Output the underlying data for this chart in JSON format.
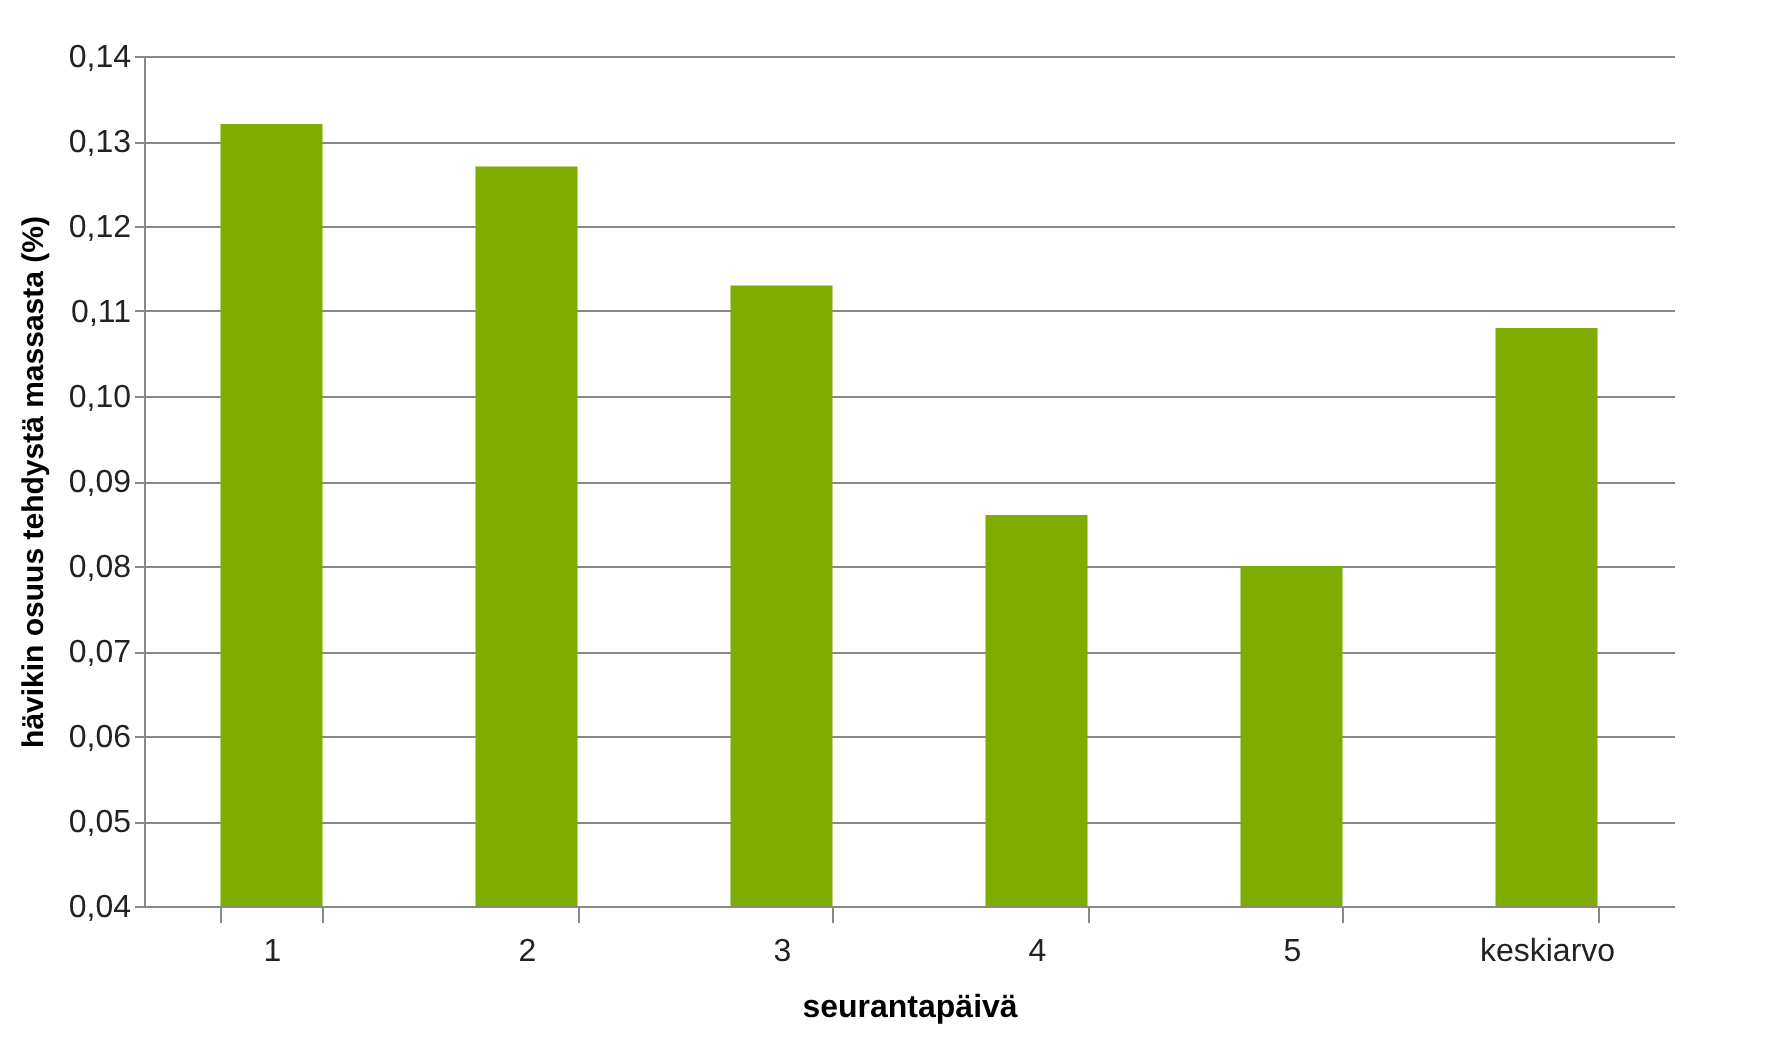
{
  "chart_data": {
    "type": "bar",
    "xlabel": "seurantapäivä",
    "ylabel": "hävikin osuus tehdystä massasta (%)",
    "categories": [
      "1",
      "2",
      "3",
      "4",
      "5",
      "keskiarvo"
    ],
    "values": [
      0.132,
      0.127,
      0.113,
      0.086,
      0.08,
      0.108
    ],
    "color": "#7fac00",
    "ylim": [
      0.04,
      0.14
    ],
    "yticks": [
      {
        "value": 0.04,
        "label": "0,04"
      },
      {
        "value": 0.05,
        "label": "0,05"
      },
      {
        "value": 0.06,
        "label": "0,06"
      },
      {
        "value": 0.07,
        "label": "0,07"
      },
      {
        "value": 0.08,
        "label": "0,08"
      },
      {
        "value": 0.09,
        "label": "0,09"
      },
      {
        "value": 0.1,
        "label": "0,10"
      },
      {
        "value": 0.11,
        "label": "0,11"
      },
      {
        "value": 0.12,
        "label": "0,12"
      },
      {
        "value": 0.13,
        "label": "0,13"
      },
      {
        "value": 0.14,
        "label": "0,14"
      }
    ],
    "grid": "y"
  }
}
